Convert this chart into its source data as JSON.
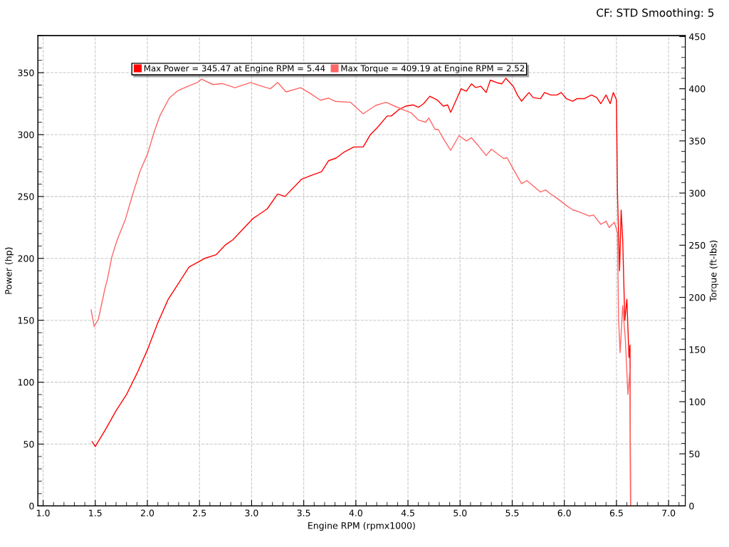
{
  "chart_data": {
    "type": "line",
    "annotations": [
      "CF: STD Smoothing: 5"
    ],
    "xlabel": "Engine RPM (rpmx1000)",
    "ylabel": "Power (hp)",
    "y2label": "Torque (ft-lbs)",
    "xlim": [
      0.95,
      7.16
    ],
    "ylim": [
      0,
      380
    ],
    "y2lim": [
      0,
      451
    ],
    "xticks": [
      {
        "value": 1.0,
        "label": "1.0"
      },
      {
        "value": 1.5,
        "label": "1.5"
      },
      {
        "value": 2.0,
        "label": "2.0"
      },
      {
        "value": 2.5,
        "label": "2.5"
      },
      {
        "value": 3.0,
        "label": "3.0"
      },
      {
        "value": 3.5,
        "label": "3.5"
      },
      {
        "value": 4.0,
        "label": "4.0"
      },
      {
        "value": 4.5,
        "label": "4.5"
      },
      {
        "value": 5.0,
        "label": "5.0"
      },
      {
        "value": 5.5,
        "label": "5.5"
      },
      {
        "value": 6.0,
        "label": "6.0"
      },
      {
        "value": 6.5,
        "label": "6.5"
      },
      {
        "value": 7.0,
        "label": "7.0"
      }
    ],
    "yticks": [
      0,
      50,
      100,
      150,
      200,
      250,
      300,
      350
    ],
    "y2ticks": [
      0,
      50,
      100,
      150,
      200,
      250,
      300,
      350,
      400,
      450
    ],
    "grid": true,
    "legend": "top",
    "line_style": "solid",
    "marker": "none",
    "series": [
      {
        "name": "Max Power = 345.47 at Engine RPM = 5.44",
        "color": "#ff0000",
        "x": [
          1.47,
          1.5,
          1.55,
          1.6,
          1.7,
          1.8,
          1.9,
          2.0,
          2.1,
          2.2,
          2.3,
          2.4,
          2.55,
          2.66,
          2.75,
          2.82,
          2.91,
          3.01,
          3.08,
          3.15,
          3.25,
          3.32,
          3.48,
          3.57,
          3.67,
          3.74,
          3.81,
          3.89,
          3.98,
          4.07,
          4.14,
          4.21,
          4.3,
          4.34,
          4.41,
          4.48,
          4.55,
          4.6,
          4.65,
          4.71,
          4.78,
          4.84,
          4.88,
          4.91,
          5.01,
          5.06,
          5.11,
          5.15,
          5.2,
          5.25,
          5.29,
          5.35,
          5.4,
          5.44,
          5.51,
          5.55,
          5.59,
          5.66,
          5.7,
          5.77,
          5.81,
          5.87,
          5.93,
          5.97,
          6.02,
          6.08,
          6.12,
          6.19,
          6.26,
          6.31,
          6.35,
          6.4,
          6.44,
          6.47,
          6.5,
          6.51,
          6.53,
          6.545,
          6.56,
          6.58,
          6.6,
          6.62,
          6.63,
          6.635
        ],
        "values": [
          52,
          48,
          55,
          62,
          77,
          90,
          107,
          126,
          148,
          167,
          180,
          193,
          200,
          203,
          211,
          215,
          223,
          232,
          236,
          240,
          252,
          250,
          264,
          267,
          270,
          279,
          281,
          286,
          290,
          290,
          300,
          306,
          315,
          315,
          320,
          323,
          324,
          322,
          325,
          331,
          328,
          323,
          324,
          318,
          337,
          335,
          341,
          338,
          339,
          334,
          344,
          342,
          341,
          345.47,
          339,
          332,
          327,
          334,
          330,
          329,
          334,
          332,
          332,
          334,
          329,
          327,
          329,
          329,
          332,
          330,
          325,
          332,
          325,
          334,
          328,
          251,
          190,
          239,
          215,
          150,
          167,
          120,
          130,
          0
        ]
      },
      {
        "name": "Max Torque = 409.19 at Engine RPM = 2.52",
        "color": "#ff6666",
        "axis": "y2",
        "x": [
          1.46,
          1.49,
          1.53,
          1.59,
          1.62,
          1.66,
          1.71,
          1.79,
          1.86,
          1.93,
          2.0,
          2.07,
          2.12,
          2.21,
          2.29,
          2.38,
          2.48,
          2.52,
          2.63,
          2.72,
          2.84,
          2.99,
          3.11,
          3.18,
          3.25,
          3.33,
          3.47,
          3.57,
          3.66,
          3.74,
          3.8,
          3.95,
          4.07,
          4.19,
          4.29,
          4.38,
          4.45,
          4.53,
          4.6,
          4.67,
          4.7,
          4.76,
          4.79,
          4.84,
          4.91,
          4.99,
          5.06,
          5.11,
          5.17,
          5.25,
          5.3,
          5.42,
          5.45,
          5.51,
          5.59,
          5.64,
          5.77,
          5.82,
          5.87,
          5.93,
          6.02,
          6.08,
          6.14,
          6.24,
          6.28,
          6.35,
          6.4,
          6.43,
          6.48,
          6.51,
          6.52,
          6.535,
          6.56,
          6.585,
          6.61,
          6.63,
          6.635
        ],
        "values": [
          188,
          172,
          179,
          207,
          219,
          239,
          255,
          275,
          299,
          321,
          337,
          360,
          374,
          391,
          398,
          402,
          406,
          409.19,
          404,
          405,
          401,
          406,
          402,
          400,
          406,
          397,
          401,
          395,
          389,
          391,
          388,
          387,
          376,
          384,
          387,
          383,
          380,
          377,
          370,
          368,
          372,
          361,
          361,
          352,
          341,
          355,
          350,
          353,
          346,
          336,
          342,
          333,
          334,
          323,
          309,
          312,
          301,
          303,
          299,
          295,
          288,
          284,
          282,
          278,
          279,
          270,
          273,
          267,
          272,
          262,
          180,
          147,
          192,
          160,
          107,
          132,
          0
        ]
      }
    ]
  }
}
